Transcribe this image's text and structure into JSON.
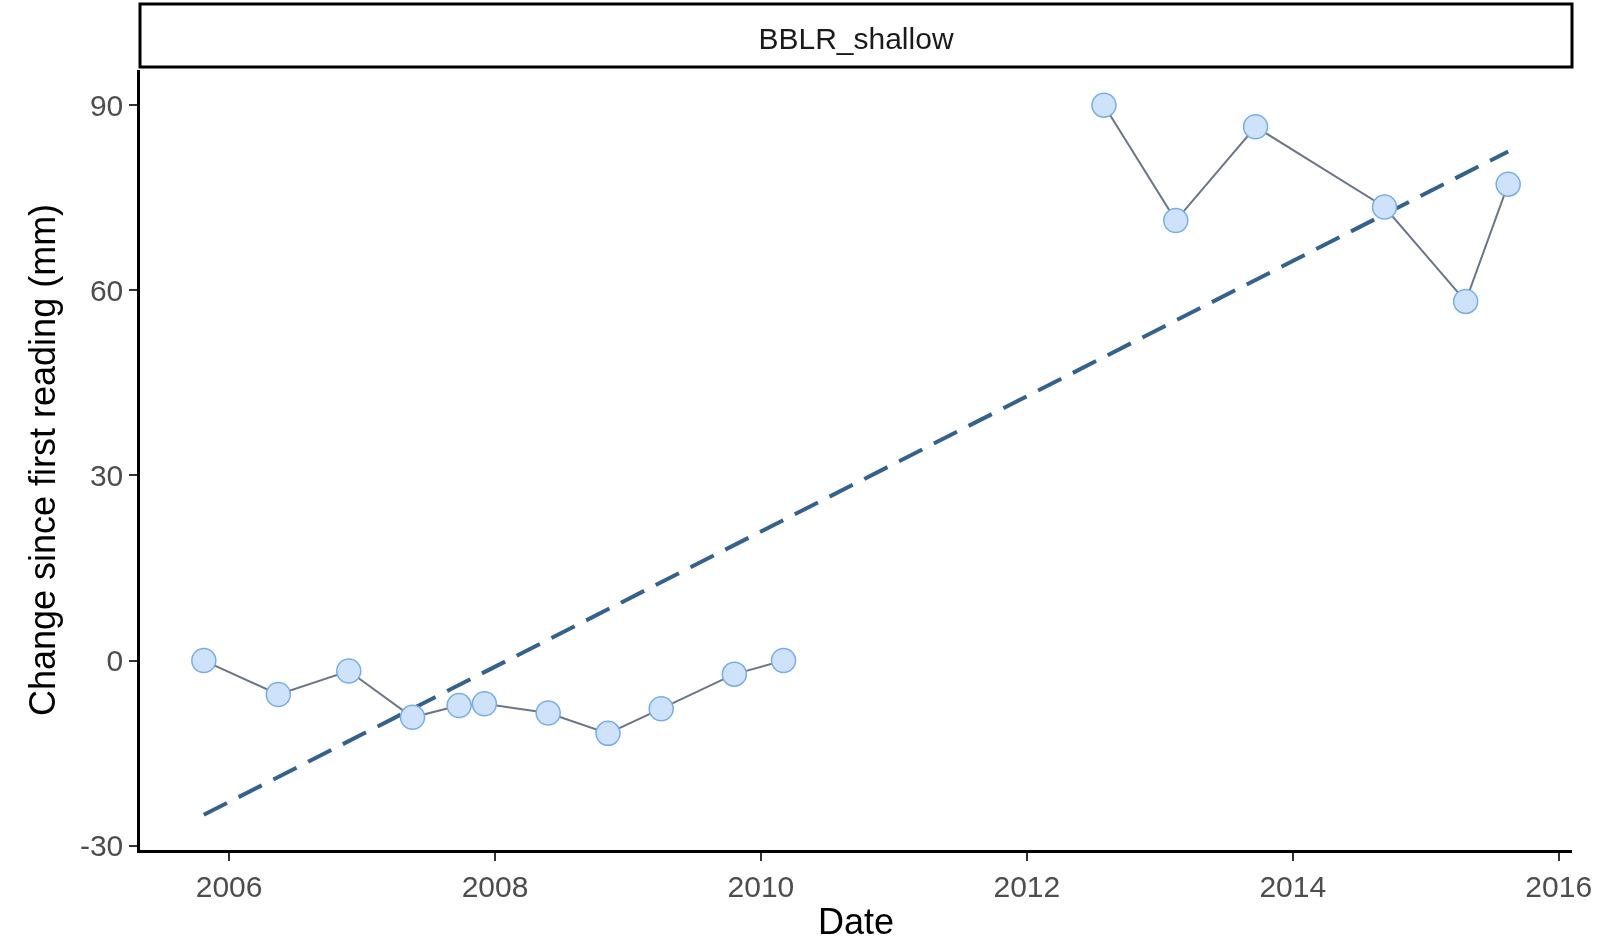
{
  "chart_data": {
    "type": "line",
    "title": "BBLR_shallow",
    "xlabel": "Date",
    "ylabel": "Change since first reading (mm)",
    "x": [
      2005.81,
      2006.37,
      2006.9,
      2007.38,
      2007.73,
      2007.92,
      2008.4,
      2008.85,
      2009.25,
      2009.8,
      2010.17,
      2011.4,
      2012.58,
      2013.12,
      2013.72,
      2014.69,
      2015.3,
      2015.62
    ],
    "series": [
      {
        "color": "#6b7585",
        "marker": "circle",
        "line_style": "solid",
        "values": [
          0,
          -5.5,
          -1.7,
          -9.2,
          -7.3,
          -7,
          -8.5,
          -11.8,
          -7.8,
          -2.2,
          0,
          null,
          90,
          71.3,
          86.5,
          73.5,
          58.2,
          77.2
        ]
      },
      {
        "color": "#34628a",
        "marker": "none",
        "line_style": "dashed",
        "x": [
          2005.81,
          2015.62
        ],
        "values": [
          -25,
          82.5
        ]
      }
    ],
    "xlim": [
      2005.33,
      2016.1
    ],
    "xticks": [
      2006,
      2008,
      2010,
      2012,
      2014,
      2016
    ],
    "ylim": [
      -30.7,
      95.7
    ],
    "yticks": [
      -30,
      0,
      30,
      60,
      90
    ],
    "grid": false
  }
}
